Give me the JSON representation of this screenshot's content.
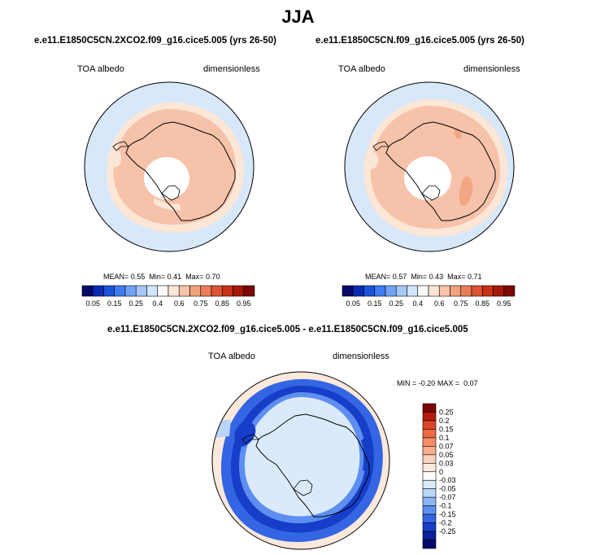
{
  "figure": {
    "season": "JJA"
  },
  "chart_data": [
    {
      "type": "heatmap",
      "projection": "south-polar-stereographic",
      "title": "e.e11.E1850C5CN.2XCO2.f09_g16.cice5.005 (yrs 26-50)",
      "left_label": "TOA albedo",
      "right_label": "dimensionless",
      "stats": {
        "mean_label": "MEAN=",
        "mean": "0.55",
        "min_label": "Min=",
        "min": "0.41",
        "max_label": "Max=",
        "max": "0.70"
      },
      "colorbar_labels": [
        "0.05",
        "0.15",
        "0.25",
        "0.4",
        "0.6",
        "0.75",
        "0.85",
        "0.95"
      ],
      "colorbar_colors": [
        "#08086b",
        "#0a2bb4",
        "#1a55dc",
        "#3f7cf0",
        "#6fa2f5",
        "#a6c6f7",
        "#d2e5fa",
        "#f9f9f9",
        "#fde6d6",
        "#f8c3a8",
        "#f2a07e",
        "#ec7c58",
        "#dd5333",
        "#c73117",
        "#a61a0a",
        "#7d0606"
      ]
    },
    {
      "type": "heatmap",
      "projection": "south-polar-stereographic",
      "title": "e.e11.E1850C5CN.f09_g16.cice5.005 (yrs 26-50)",
      "left_label": "TOA albedo",
      "right_label": "dimensionless",
      "stats": {
        "mean_label": "MEAN=",
        "mean": "0.57",
        "min_label": "Min=",
        "min": "0.43",
        "max_label": "Max=",
        "max": "0.71"
      },
      "colorbar_labels": [
        "0.05",
        "0.15",
        "0.25",
        "0.4",
        "0.6",
        "0.75",
        "0.85",
        "0.95"
      ],
      "colorbar_colors": [
        "#08086b",
        "#0a2bb4",
        "#1a55dc",
        "#3f7cf0",
        "#6fa2f5",
        "#a6c6f7",
        "#d2e5fa",
        "#f9f9f9",
        "#fde6d6",
        "#f8c3a8",
        "#f2a07e",
        "#ec7c58",
        "#dd5333",
        "#c73117",
        "#a61a0a",
        "#7d0606"
      ]
    },
    {
      "type": "heatmap",
      "projection": "south-polar-stereographic",
      "title": "e.e11.E1850C5CN.2XCO2.f09_g16.cice5.005 - e.e11.E1850C5CN.f09_g16.cice5.005",
      "left_label": "TOA albedo",
      "right_label": "dimensionless",
      "stats": {
        "min_label": "MIN =",
        "min": "-0.20",
        "max_label": "MAX =",
        "max": "0.07"
      },
      "colorbar_labels": [
        "0.25",
        "0.2",
        "0.15",
        "0.1",
        "0.07",
        "0.05",
        "0.03",
        "0",
        "-0.03",
        "-0.05",
        "-0.07",
        "-0.1",
        "-0.15",
        "-0.2",
        "-0.25"
      ],
      "colorbar_colors": [
        "#7d0606",
        "#b81b0b",
        "#dd4428",
        "#ef6a45",
        "#f58c66",
        "#f8ad8e",
        "#fbd0ba",
        "#fde9dc",
        "#ffffff",
        "#dbeafb",
        "#b9d4f8",
        "#8fb6f5",
        "#5d8ff0",
        "#3466e4",
        "#163ec8",
        "#0a1f9c",
        "#07086b"
      ]
    }
  ]
}
